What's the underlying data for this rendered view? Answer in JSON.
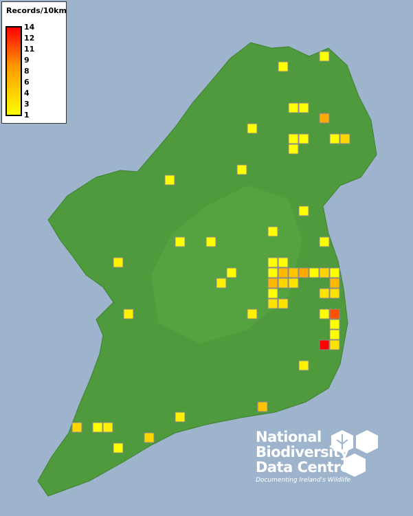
{
  "legend": {
    "title": "Records/10km",
    "ticks": [
      "14",
      "12",
      "11",
      "9",
      "8",
      "6",
      "4",
      "3",
      "1"
    ],
    "color_low": "#ffff00",
    "color_mid": "#ff9a00",
    "color_high": "#ff0000"
  },
  "colors": {
    "sea": "#9db4cc",
    "land": "#4f9a3c",
    "square_border": "#8a8a8a"
  },
  "logo": {
    "line1": "National",
    "line2": "Biodiversity",
    "line3": "Data Centre",
    "tagline": "Documenting Ireland's Wildlife"
  },
  "cells": [
    {
      "col": 31,
      "row": 5,
      "value": 1
    },
    {
      "col": 27,
      "row": 6,
      "value": 1
    },
    {
      "col": 28,
      "row": 10,
      "value": 1
    },
    {
      "col": 29,
      "row": 10,
      "value": 1
    },
    {
      "col": 31,
      "row": 11,
      "value": 7
    },
    {
      "col": 24,
      "row": 12,
      "value": 1
    },
    {
      "col": 28,
      "row": 13,
      "value": 1
    },
    {
      "col": 29,
      "row": 13,
      "value": 1
    },
    {
      "col": 28,
      "row": 14,
      "value": 1
    },
    {
      "col": 32,
      "row": 13,
      "value": 1
    },
    {
      "col": 33,
      "row": 13,
      "value": 4
    },
    {
      "col": 23,
      "row": 16,
      "value": 1
    },
    {
      "col": 16,
      "row": 17,
      "value": 1
    },
    {
      "col": 29,
      "row": 20,
      "value": 1
    },
    {
      "col": 26,
      "row": 22,
      "value": 1
    },
    {
      "col": 17,
      "row": 23,
      "value": 1
    },
    {
      "col": 20,
      "row": 23,
      "value": 1
    },
    {
      "col": 31,
      "row": 23,
      "value": 1
    },
    {
      "col": 11,
      "row": 25,
      "value": 2
    },
    {
      "col": 26,
      "row": 25,
      "value": 1
    },
    {
      "col": 27,
      "row": 25,
      "value": 1
    },
    {
      "col": 26,
      "row": 26,
      "value": 1
    },
    {
      "col": 27,
      "row": 26,
      "value": 6
    },
    {
      "col": 28,
      "row": 26,
      "value": 5
    },
    {
      "col": 29,
      "row": 26,
      "value": 7
    },
    {
      "col": 30,
      "row": 26,
      "value": 1
    },
    {
      "col": 31,
      "row": 26,
      "value": 4
    },
    {
      "col": 32,
      "row": 26,
      "value": 1
    },
    {
      "col": 22,
      "row": 26,
      "value": 1
    },
    {
      "col": 21,
      "row": 27,
      "value": 2
    },
    {
      "col": 26,
      "row": 27,
      "value": 6
    },
    {
      "col": 27,
      "row": 27,
      "value": 4
    },
    {
      "col": 28,
      "row": 27,
      "value": 3
    },
    {
      "col": 32,
      "row": 27,
      "value": 6
    },
    {
      "col": 26,
      "row": 28,
      "value": 1
    },
    {
      "col": 31,
      "row": 28,
      "value": 3
    },
    {
      "col": 32,
      "row": 28,
      "value": 3
    },
    {
      "col": 26,
      "row": 29,
      "value": 3
    },
    {
      "col": 27,
      "row": 29,
      "value": 3
    },
    {
      "col": 12,
      "row": 30,
      "value": 2
    },
    {
      "col": 24,
      "row": 30,
      "value": 2
    },
    {
      "col": 31,
      "row": 30,
      "value": 1
    },
    {
      "col": 32,
      "row": 30,
      "value": 11
    },
    {
      "col": 32,
      "row": 31,
      "value": 1
    },
    {
      "col": 32,
      "row": 32,
      "value": 1
    },
    {
      "col": 31,
      "row": 33,
      "value": 14
    },
    {
      "col": 32,
      "row": 33,
      "value": 3
    },
    {
      "col": 29,
      "row": 35,
      "value": 2
    },
    {
      "col": 25,
      "row": 39,
      "value": 5
    },
    {
      "col": 17,
      "row": 40,
      "value": 2
    },
    {
      "col": 7,
      "row": 41,
      "value": 4
    },
    {
      "col": 9,
      "row": 41,
      "value": 1
    },
    {
      "col": 10,
      "row": 41,
      "value": 2
    },
    {
      "col": 14,
      "row": 42,
      "value": 4
    },
    {
      "col": 11,
      "row": 43,
      "value": 1
    }
  ]
}
